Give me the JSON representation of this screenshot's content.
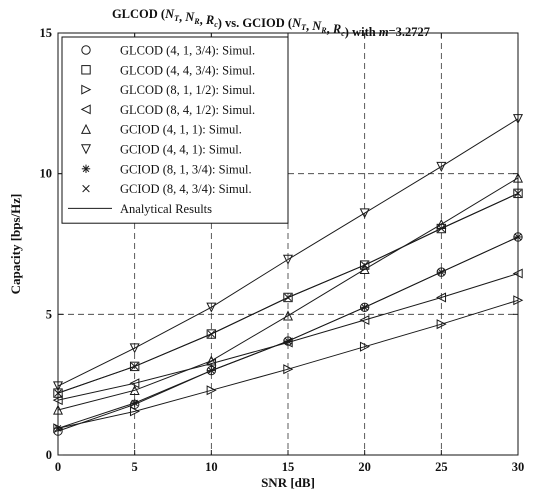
{
  "chart_data": {
    "type": "line",
    "title_parts": [
      {
        "text": "GLCOD (",
        "italic": false
      },
      {
        "text": "N",
        "italic": true
      },
      {
        "text": "T",
        "italic": true,
        "sub": true
      },
      {
        "text": ", ",
        "italic": false
      },
      {
        "text": "N",
        "italic": true
      },
      {
        "text": "R",
        "italic": true,
        "sub": true
      },
      {
        "text": ", ",
        "italic": false
      },
      {
        "text": "R",
        "italic": true
      },
      {
        "text": "c",
        "italic": true,
        "sub": true
      },
      {
        "text": ") vs. GCIOD (",
        "italic": false
      },
      {
        "text": "N",
        "italic": true
      },
      {
        "text": "T",
        "italic": true,
        "sub": true
      },
      {
        "text": ", ",
        "italic": false
      },
      {
        "text": "N",
        "italic": true
      },
      {
        "text": "R",
        "italic": true,
        "sub": true
      },
      {
        "text": ", ",
        "italic": false
      },
      {
        "text": "R",
        "italic": true
      },
      {
        "text": "c",
        "italic": true,
        "sub": true
      },
      {
        "text": ") with ",
        "italic": false
      },
      {
        "text": "m",
        "italic": true
      },
      {
        "text": "=3.2727",
        "italic": false
      }
    ],
    "xlabel": "SNR [dB]",
    "ylabel": "Capacity [bps/Hz]",
    "xlim": [
      0,
      30
    ],
    "ylim": [
      0,
      15
    ],
    "x": [
      0,
      5,
      10,
      15,
      20,
      25,
      30
    ],
    "xticks": [
      0,
      5,
      10,
      15,
      20,
      25,
      30
    ],
    "yticks": [
      0,
      5,
      10,
      15
    ],
    "grid": "dashed",
    "grid_x": [
      5,
      10,
      15,
      20,
      25
    ],
    "grid_y": [
      5,
      10
    ],
    "legend_position": "top-left",
    "series": [
      {
        "name": "GLCOD (4, 1, 3/4): Simul.",
        "marker": "circle",
        "values": [
          0.85,
          1.8,
          3.0,
          4.05,
          5.25,
          6.5,
          7.75
        ]
      },
      {
        "name": "GLCOD (4, 4, 3/4): Simul.",
        "marker": "square",
        "values": [
          2.2,
          3.15,
          4.3,
          5.6,
          6.75,
          8.05,
          9.3
        ]
      },
      {
        "name": "GLCOD (8, 1, 1/2): Simul.",
        "marker": "triangle-right",
        "values": [
          0.95,
          1.55,
          2.3,
          3.05,
          3.85,
          4.65,
          5.5
        ]
      },
      {
        "name": "GLCOD (8, 4, 1/2): Simul.",
        "marker": "triangle-left",
        "values": [
          1.95,
          2.55,
          3.25,
          4.0,
          4.8,
          5.6,
          6.45
        ]
      },
      {
        "name": "GCIOD (4, 1, 1): Simul.",
        "marker": "triangle-up",
        "values": [
          1.6,
          2.3,
          3.35,
          4.95,
          6.6,
          8.2,
          9.85
        ]
      },
      {
        "name": "GCIOD (4, 4, 1): Simul.",
        "marker": "triangle-down",
        "values": [
          2.45,
          3.8,
          5.25,
          6.95,
          8.6,
          10.25,
          11.95
        ]
      },
      {
        "name": "GCIOD (8, 1, 3/4): Simul.",
        "marker": "star",
        "values": [
          0.95,
          1.85,
          3.0,
          4.05,
          5.25,
          6.5,
          7.75
        ]
      },
      {
        "name": "GCIOD (8, 4, 3/4): Simul.",
        "marker": "x",
        "values": [
          2.2,
          3.15,
          4.3,
          5.6,
          6.75,
          8.05,
          9.3
        ]
      }
    ],
    "analytical_label": "Analytical Results",
    "colors": {
      "line": "#1a1a1a",
      "grid": "#333333",
      "background": "#ffffff"
    }
  }
}
